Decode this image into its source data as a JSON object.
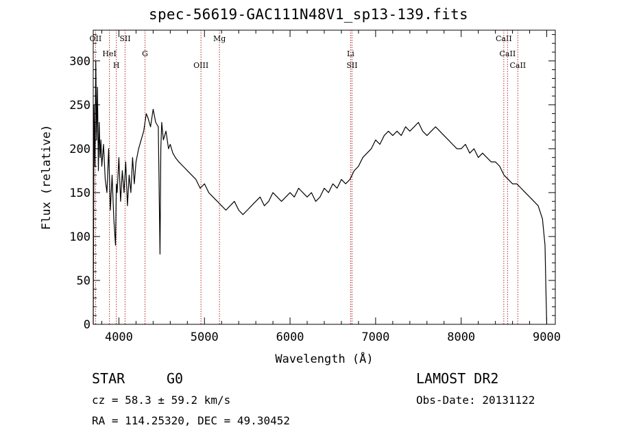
{
  "title": "spec-56619-GAC111N48V1_sp13-139.fits",
  "chart_data": {
    "type": "line",
    "xlabel": "Wavelength (Å)",
    "ylabel": "Flux (relative)",
    "xlim": [
      3700,
      9100
    ],
    "ylim": [
      0,
      335
    ],
    "x_ticks": [
      4000,
      5000,
      6000,
      7000,
      8000,
      9000
    ],
    "y_ticks": [
      0,
      50,
      100,
      150,
      200,
      250,
      300
    ],
    "series": [
      {
        "x": [
          3700,
          3710,
          3720,
          3730,
          3740,
          3750,
          3760,
          3770,
          3780,
          3790,
          3800,
          3820,
          3840,
          3860,
          3880,
          3900,
          3920,
          3940,
          3960,
          3970,
          3980,
          4000,
          4020,
          4040,
          4060,
          4080,
          4100,
          4120,
          4140,
          4160,
          4180,
          4200,
          4230,
          4260,
          4290,
          4320,
          4340,
          4370,
          4400,
          4430,
          4460,
          4480,
          4490,
          4500,
          4520,
          4550,
          4580,
          4600,
          4630,
          4660,
          4700,
          4750,
          4800,
          4850,
          4900,
          4950,
          5000,
          5050,
          5100,
          5150,
          5200,
          5250,
          5300,
          5350,
          5400,
          5450,
          5500,
          5550,
          5600,
          5650,
          5700,
          5750,
          5800,
          5850,
          5900,
          5950,
          6000,
          6050,
          6100,
          6150,
          6200,
          6250,
          6300,
          6350,
          6400,
          6450,
          6500,
          6550,
          6600,
          6650,
          6700,
          6750,
          6800,
          6850,
          6900,
          6950,
          7000,
          7050,
          7100,
          7150,
          7200,
          7250,
          7300,
          7350,
          7400,
          7450,
          7500,
          7550,
          7600,
          7650,
          7700,
          7750,
          7800,
          7850,
          7900,
          7950,
          8000,
          8050,
          8100,
          8150,
          8200,
          8250,
          8300,
          8350,
          8400,
          8450,
          8500,
          8550,
          8600,
          8650,
          8700,
          8750,
          8800,
          8850,
          8900,
          8950,
          8980,
          8990,
          9000
        ],
        "y": [
          0,
          250,
          180,
          300,
          210,
          270,
          175,
          230,
          190,
          210,
          180,
          205,
          165,
          150,
          200,
          130,
          170,
          120,
          90,
          160,
          150,
          190,
          140,
          175,
          150,
          185,
          135,
          170,
          150,
          190,
          160,
          185,
          200,
          210,
          220,
          240,
          235,
          225,
          245,
          230,
          225,
          80,
          200,
          230,
          210,
          220,
          200,
          205,
          195,
          190,
          185,
          180,
          175,
          170,
          165,
          155,
          160,
          150,
          145,
          140,
          135,
          130,
          135,
          140,
          130,
          125,
          130,
          135,
          140,
          145,
          135,
          140,
          150,
          145,
          140,
          145,
          150,
          145,
          155,
          150,
          145,
          150,
          140,
          145,
          155,
          150,
          160,
          155,
          165,
          160,
          165,
          175,
          180,
          190,
          195,
          200,
          210,
          205,
          215,
          220,
          215,
          220,
          215,
          225,
          220,
          225,
          230,
          220,
          215,
          220,
          225,
          220,
          215,
          210,
          205,
          200,
          200,
          205,
          195,
          200,
          190,
          195,
          190,
          185,
          185,
          180,
          170,
          165,
          160,
          160,
          155,
          150,
          145,
          140,
          135,
          120,
          90,
          40,
          0
        ]
      }
    ],
    "lines": [
      {
        "label": "OII",
        "x": 3727
      },
      {
        "label": "HeI",
        "x": 3889
      },
      {
        "label": "H",
        "x": 3970
      },
      {
        "label": "SII",
        "x": 4072
      },
      {
        "label": "G",
        "x": 4305
      },
      {
        "label": "OIII",
        "x": 4959
      },
      {
        "label": "Mg",
        "x": 5175
      },
      {
        "label": "Li",
        "x": 6708
      },
      {
        "label": "SII",
        "x": 6724
      },
      {
        "label": "CaII",
        "x": 8498
      },
      {
        "label": "CaII",
        "x": 8542
      },
      {
        "label": "CaII",
        "x": 8662
      }
    ],
    "grid": false
  },
  "footer": {
    "class_label": "STAR",
    "subclass": "G0",
    "survey": "LAMOST DR2",
    "cz": "cz = 58.3 ± 59.2 km/s",
    "obs_date": "Obs-Date: 20131122",
    "coords": "RA = 114.25320, DEC =  49.30452"
  }
}
